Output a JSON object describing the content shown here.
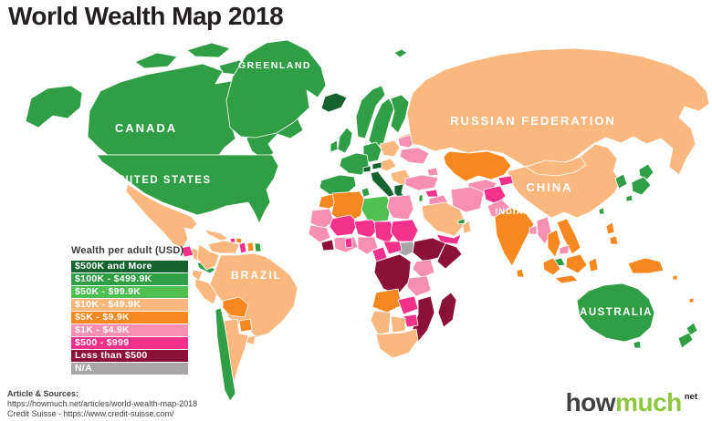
{
  "title": "World Wealth Map 2018",
  "legend": {
    "title": "Wealth per adult (USD)",
    "items": [
      {
        "label": "$500K and More",
        "key": "k500"
      },
      {
        "label": "$100K - $499.9K",
        "key": "k100"
      },
      {
        "label": "$50K - $99.9K",
        "key": "k50"
      },
      {
        "label": "$10K - $49.9K",
        "key": "k10"
      },
      {
        "label": "$5K - $9.9K",
        "key": "k5"
      },
      {
        "label": "$1K - $4.9K",
        "key": "k1"
      },
      {
        "label": "$500 - $999",
        "key": "d500"
      },
      {
        "label": "Less than $500",
        "key": "lt500"
      },
      {
        "label": "N/A",
        "key": "na"
      }
    ]
  },
  "palette": {
    "k500": "#16632f",
    "k100": "#2f9e44",
    "k50": "#50bf52",
    "k10": "#fab87e",
    "k5": "#f6881f",
    "k1": "#f78fb3",
    "d500": "#f3308a",
    "lt500": "#8c1038",
    "na": "#a8a6a6"
  },
  "map": {
    "labels": [
      "GREENLAND",
      "CANADA",
      "UNITED STATES",
      "RUSSIAN FEDERATION",
      "CHINA",
      "INDIA",
      "BRAZIL",
      "AUSTRALIA"
    ]
  },
  "regions": {
    "alaska": "k100",
    "canada": "k100",
    "canada-arctic-1": "k100",
    "canada-arctic-2": "k100",
    "canada-arctic-3": "k100",
    "united-states": "k100",
    "mexico": "k10",
    "guatemala": "d500",
    "honduras-nicaragua": "k10",
    "costa-rica-panama": "k100",
    "cuba": "k10",
    "haiti": "d500",
    "dominican-republic": "k5",
    "jamaica": "k5",
    "greenland": "k100",
    "iceland": "k500",
    "svalbard": "k100",
    "venezuela": "k10",
    "guyana": "d500",
    "suriname": "k5",
    "french-guiana": "k100",
    "colombia": "k10",
    "ecuador": "k10",
    "peru": "k10",
    "brazil": "k10",
    "bolivia": "k5",
    "paraguay": "k5",
    "chile": "k100",
    "argentina": "k10",
    "uruguay": "k10",
    "norway": "k100",
    "sweden": "k100",
    "finland": "k100",
    "denmark": "k100",
    "baltics": "k10",
    "uk": "k100",
    "ireland": "k100",
    "france": "k100",
    "germany": "k100",
    "poland": "k10",
    "belarus": "k1",
    "ukraine": "k1",
    "czech-hungary": "k10",
    "romania-balkans": "k10",
    "switzerland": "k500",
    "austria": "k500",
    "italy": "k500",
    "spain-portugal": "k100",
    "greece": "k500",
    "russia": "k10",
    "mongolia": "k10",
    "kazakhstan": "k5",
    "uzbek-turkmen": "k1",
    "kyrgyz-tajik": "d500",
    "caucasus": "k1",
    "turkey": "k1",
    "syria": "d500",
    "iraq": "k1",
    "iran": "k1",
    "afghanistan": "d500",
    "pakistan": "k1",
    "israel": "k100",
    "saudi-arabia": "k10",
    "yemen": "d500",
    "oman": "k10",
    "uae-qatar": "k100",
    "china": "k10",
    "korea": "k100",
    "japan-north": "k100",
    "japan-main": "k100",
    "japan-south": "k100",
    "taiwan": "k100",
    "india": "k5",
    "bangladesh": "k1",
    "sri-lanka": "k5",
    "myanmar": "k1",
    "thailand": "k5",
    "laos-vietnam": "k5",
    "cambodia": "k1",
    "malaysia": "k100",
    "philippines-north": "k5",
    "philippines-south": "k5",
    "indonesia-sumatra": "k5",
    "indonesia-java": "k5",
    "indonesia-borneo": "k5",
    "indonesia-sulawesi": "k5",
    "new-guinea": "k5",
    "solomon": "k5",
    "fiji": "k5",
    "australia": "k100",
    "tasmania": "k100",
    "new-zealand-north": "k100",
    "new-zealand-south": "k100",
    "morocco": "k5",
    "algeria": "k5",
    "tunisia": "k100",
    "libya": "k50",
    "egypt": "k1",
    "mauritania": "k1",
    "mali": "d500",
    "niger": "d500",
    "chad": "d500",
    "sudan": "d500",
    "south-sudan": "na",
    "ethiopia": "lt500",
    "somalia": "lt500",
    "senegal-guinea": "k1",
    "sierra-leone-liberia": "lt500",
    "ivory-coast-ghana": "k1",
    "ghana-togo": "d500",
    "nigeria": "k1",
    "cameroon": "d500",
    "central-african-republic": "d500",
    "drc": "lt500",
    "kenya": "k1",
    "tanzania": "k1",
    "angola": "k5",
    "zambia": "d500",
    "mozambique": "lt500",
    "zimbabwe": "d500",
    "namibia": "k10",
    "botswana": "k10",
    "south-africa": "k10",
    "madagascar": "lt500"
  },
  "sources": {
    "heading": "Article & Sources:",
    "line1": "https://howmuch.net/articles/world-wealth-map-2018",
    "line2": "Credit Suisse - https://www.credit-suisse.com/"
  },
  "logo": {
    "how": "how",
    "much": "much",
    "tld": "net"
  }
}
